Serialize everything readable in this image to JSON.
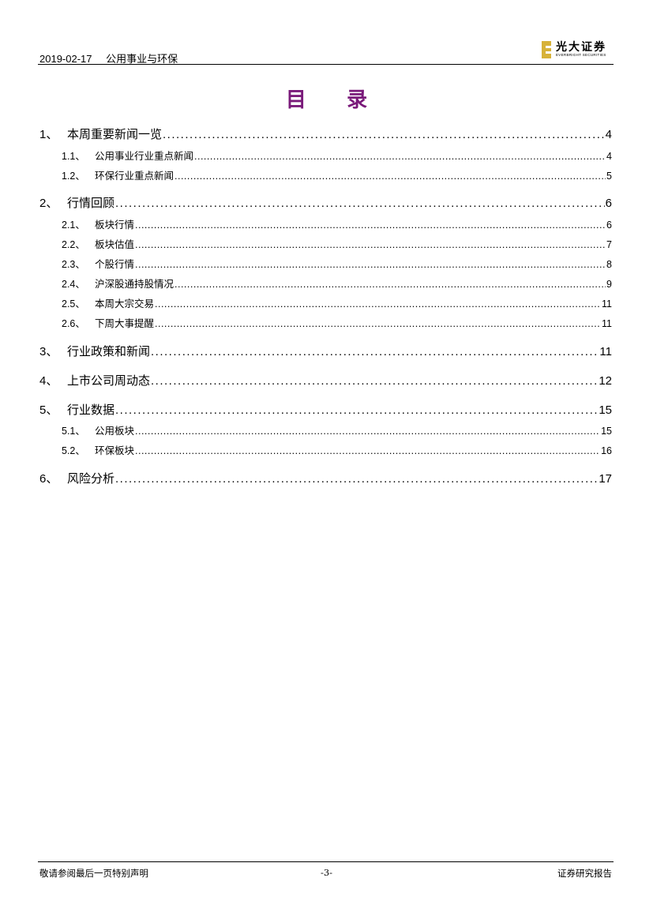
{
  "header": {
    "date": "2019-02-17",
    "sector": "公用事业与环保",
    "logo_cn": "光大证券",
    "logo_en": "EVERBRIGHT SECURITIES"
  },
  "title": "目 录",
  "toc": [
    {
      "num": "1、",
      "text": "本周重要新闻一览",
      "page": "4",
      "level": 1
    },
    {
      "num": "1.1、",
      "text": "公用事业行业重点新闻",
      "page": "4",
      "level": 2
    },
    {
      "num": "1.2、",
      "text": "环保行业重点新闻",
      "page": "5",
      "level": 2
    },
    {
      "num": "2、",
      "text": "行情回顾",
      "page": "6",
      "level": 1
    },
    {
      "num": "2.1、",
      "text": "板块行情",
      "page": "6",
      "level": 2
    },
    {
      "num": "2.2、",
      "text": "板块估值",
      "page": "7",
      "level": 2
    },
    {
      "num": "2.3、",
      "text": "个股行情",
      "page": "8",
      "level": 2
    },
    {
      "num": "2.4、",
      "text": "沪深股通持股情况",
      "page": "9",
      "level": 2
    },
    {
      "num": "2.5、",
      "text": "本周大宗交易",
      "page": "11",
      "level": 2
    },
    {
      "num": "2.6、",
      "text": "下周大事提醒",
      "page": "11",
      "level": 2
    },
    {
      "num": "3、",
      "text": "行业政策和新闻",
      "page": "11",
      "level": 1
    },
    {
      "num": "4、",
      "text": "上市公司周动态",
      "page": "12",
      "level": 1
    },
    {
      "num": "5、",
      "text": "行业数据",
      "page": "15",
      "level": 1
    },
    {
      "num": "5.1、",
      "text": "公用板块",
      "page": "15",
      "level": 2
    },
    {
      "num": "5.2、",
      "text": "环保板块",
      "page": "16",
      "level": 2
    },
    {
      "num": "6、",
      "text": "风险分析",
      "page": "17",
      "level": 1
    }
  ],
  "footer": {
    "left": "敬请参阅最后一页特别声明",
    "center": "-3-",
    "right": "证券研究报告"
  }
}
